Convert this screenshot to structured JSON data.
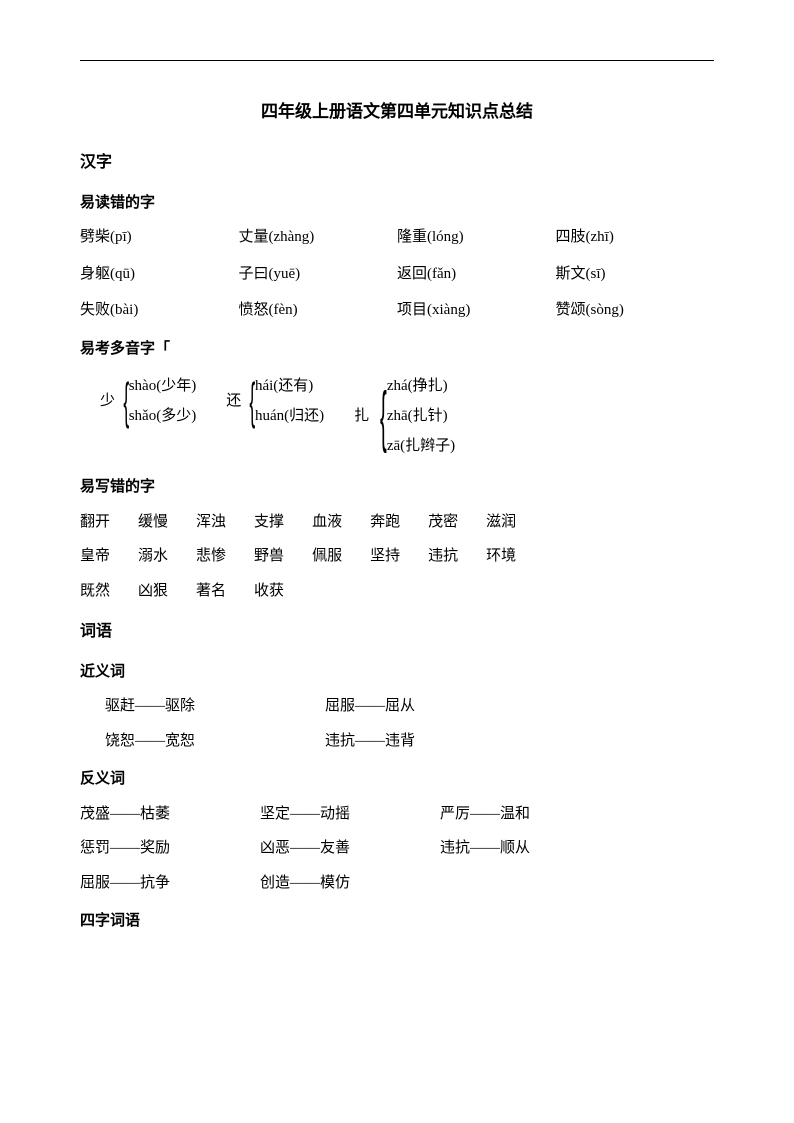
{
  "title": "四年级上册语文第四单元知识点总结",
  "sections": {
    "hanzi": {
      "title": "汉字",
      "misread": {
        "title": "易读错的字",
        "rows": [
          [
            "劈柴(pī)",
            "丈量(zhàng)",
            "隆重(lóng)",
            "四肢(zhī)"
          ],
          [
            "身躯(qū)",
            "子曰(yuē)",
            "返回(fǎn)",
            "斯文(sī)"
          ],
          [
            "失败(bài)",
            "愤怒(fèn)",
            "项目(xiàng)",
            "赞颂(sòng)"
          ]
        ]
      },
      "polyphone": {
        "title": "易考多音字「",
        "groups": [
          {
            "char": "少",
            "readings": [
              "shào(少年)",
              "shǎo(多少)"
            ]
          },
          {
            "char": "还",
            "readings": [
              "hái(还有)",
              "huán(归还)"
            ]
          },
          {
            "char": "扎",
            "readings": [
              "zhá(挣扎)",
              "zhā(扎针)",
              "zā(扎辫子)"
            ]
          }
        ]
      },
      "miswrite": {
        "title": "易写错的字",
        "rows": [
          [
            "翻开",
            "缓慢",
            "浑浊",
            "支撑",
            "血液",
            "奔跑",
            "茂密",
            "滋润"
          ],
          [
            "皇帝",
            "溺水",
            "悲惨",
            "野兽",
            "佩服",
            "坚持",
            "违抗",
            "环境"
          ],
          [
            "既然",
            "凶狠",
            "著名",
            "收获"
          ]
        ]
      }
    },
    "ciyu": {
      "title": "词语",
      "synonyms": {
        "title": "近义词",
        "pairs": [
          [
            "驱赶——驱除",
            "屈服——屈从"
          ],
          [
            "饶恕——宽恕",
            "违抗——违背"
          ]
        ]
      },
      "antonyms": {
        "title": "反义词",
        "rows": [
          [
            "茂盛——枯萎",
            "坚定——动摇",
            "严厉——温和"
          ],
          [
            "惩罚——奖励",
            "凶恶——友善",
            "违抗——顺从"
          ],
          [
            "屈服——抗争",
            "创造——模仿"
          ]
        ]
      },
      "fourchar": {
        "title": "四字词语"
      }
    }
  }
}
